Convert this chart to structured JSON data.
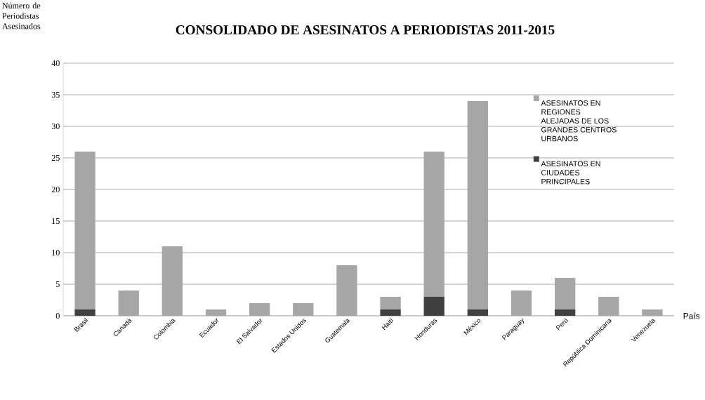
{
  "chart_data": {
    "type": "bar",
    "stacked": true,
    "title": "CONSOLIDADO DE ASESINATOS A PERIODISTAS 2011-2015",
    "xlabel": "País",
    "ylabel": "Número de Periodistas Asesinados",
    "categories": [
      "Brasil",
      "Canadá",
      "Colombia",
      "Ecuador",
      "El Salvador",
      "Estados Unidos",
      "Guatemala",
      "Haití",
      "Honduras",
      "México",
      "Paraguay",
      "Perú",
      "República Dominicana",
      "Venezuela"
    ],
    "series": [
      {
        "name": "ASESINATOS EN CIUDADES PRINCIPALES",
        "color": "#404040",
        "values": [
          1,
          0,
          0,
          0,
          0,
          0,
          0,
          1,
          3,
          1,
          0,
          1,
          0,
          0
        ]
      },
      {
        "name": "ASESINATOS EN REGIONES ALEJADAS DE LOS GRANDES CENTROS URBANOS",
        "color": "#a6a6a6",
        "values": [
          25,
          4,
          11,
          1,
          2,
          2,
          8,
          2,
          23,
          33,
          4,
          5,
          3,
          1
        ]
      }
    ],
    "ylim": [
      0,
      40
    ],
    "yticks": [
      0,
      5,
      10,
      15,
      20,
      25,
      30,
      35,
      40
    ],
    "grid": "y",
    "legend": "right"
  }
}
